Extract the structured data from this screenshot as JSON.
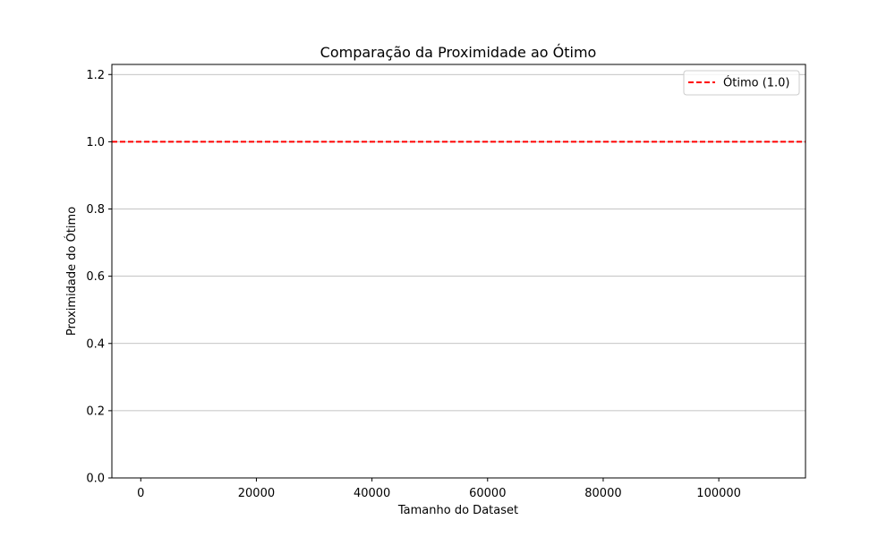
{
  "chart_data": {
    "type": "line",
    "title": "Comparação da Proximidade ao Ótimo",
    "xlabel": "Tamanho do Dataset",
    "ylabel": "Proximidade do Ótimo",
    "xlim": [
      -5000,
      115000
    ],
    "ylim": [
      0,
      1.23
    ],
    "xticks": [
      0,
      20000,
      40000,
      60000,
      80000,
      100000
    ],
    "xtick_labels": [
      "0",
      "20000",
      "40000",
      "60000",
      "80000",
      "100000"
    ],
    "yticks": [
      0.0,
      0.2,
      0.4,
      0.6,
      0.8,
      1.0,
      1.2
    ],
    "ytick_labels": [
      "0.0",
      "0.2",
      "0.4",
      "0.6",
      "0.8",
      "1.0",
      "1.2"
    ],
    "grid": "y",
    "legend": "top-right",
    "reference_lines": [
      {
        "name": "Ótimo (1.0)",
        "y": 1.0,
        "color": "#ff0000",
        "style": "dashed"
      }
    ],
    "series": []
  }
}
